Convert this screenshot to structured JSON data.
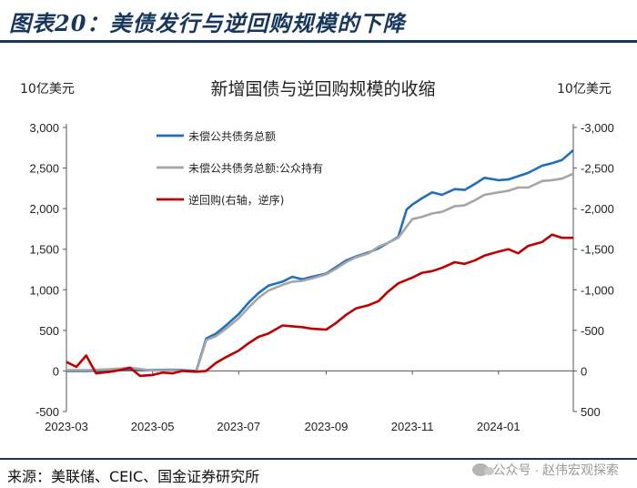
{
  "header": {
    "title": "图表20：美债发行与逆回购规模的下降"
  },
  "source": "来源：美联储、CEIC、国金证券研究所",
  "watermark": "公众号 · 赵伟宏观探索",
  "colors": {
    "series_blue": "#1f6fbf",
    "series_gray": "#a6a6a6",
    "series_red": "#c00000",
    "header_blue": "#17375e"
  },
  "chart_data": {
    "type": "line",
    "title": "新增国债与逆回购规模的收缩",
    "left_unit": "10亿美元",
    "right_unit": "10亿美元",
    "left_axis": {
      "min": -500,
      "max": 3000,
      "ticks": [
        -500,
        0,
        500,
        1000,
        1500,
        2000,
        2500,
        3000
      ],
      "tick_labels": [
        "-500",
        "0",
        "500",
        "1,000",
        "1,500",
        "2,000",
        "2,500",
        "3,000"
      ]
    },
    "right_axis": {
      "reversed": true,
      "min": 500,
      "max": -3000,
      "ticks": [
        500,
        0,
        -500,
        -1000,
        -1500,
        -2000,
        -2500,
        -3000
      ],
      "tick_labels": [
        "500",
        "0",
        "-500",
        "-1,000",
        "-1,500",
        "-2,000",
        "-2,500",
        "-3,000"
      ]
    },
    "x_range": [
      "2023-03-01",
      "2024-02-23"
    ],
    "x_tick_labels": [
      {
        "date": "2023-03-01",
        "label": "2023-03"
      },
      {
        "date": "2023-05-01",
        "label": "2023-05"
      },
      {
        "date": "2023-07-01",
        "label": "2023-07"
      },
      {
        "date": "2023-09-01",
        "label": "2023-09"
      },
      {
        "date": "2023-11-01",
        "label": "2023-11"
      },
      {
        "date": "2024-01-01",
        "label": "2024-01"
      }
    ],
    "legend_position": "top-left",
    "series": [
      {
        "name": "未偿公共债务总额",
        "axis": "left",
        "color": "#1f6fbf",
        "points": [
          [
            "2023-03-01",
            0
          ],
          [
            "2023-03-15",
            0
          ],
          [
            "2023-04-01",
            5
          ],
          [
            "2023-04-15",
            20
          ],
          [
            "2023-05-01",
            10
          ],
          [
            "2023-05-15",
            15
          ],
          [
            "2023-06-01",
            0
          ],
          [
            "2023-06-08",
            400
          ],
          [
            "2023-06-15",
            460
          ],
          [
            "2023-06-22",
            560
          ],
          [
            "2023-07-01",
            700
          ],
          [
            "2023-07-08",
            840
          ],
          [
            "2023-07-15",
            960
          ],
          [
            "2023-07-22",
            1050
          ],
          [
            "2023-08-01",
            1100
          ],
          [
            "2023-08-08",
            1160
          ],
          [
            "2023-08-15",
            1130
          ],
          [
            "2023-08-22",
            1160
          ],
          [
            "2023-09-01",
            1200
          ],
          [
            "2023-09-08",
            1280
          ],
          [
            "2023-09-15",
            1360
          ],
          [
            "2023-09-22",
            1410
          ],
          [
            "2023-10-01",
            1460
          ],
          [
            "2023-10-08",
            1510
          ],
          [
            "2023-10-15",
            1580
          ],
          [
            "2023-10-22",
            1650
          ],
          [
            "2023-10-28",
            1990
          ],
          [
            "2023-11-01",
            2050
          ],
          [
            "2023-11-08",
            2130
          ],
          [
            "2023-11-15",
            2200
          ],
          [
            "2023-11-22",
            2170
          ],
          [
            "2023-12-01",
            2240
          ],
          [
            "2023-12-08",
            2230
          ],
          [
            "2023-12-15",
            2300
          ],
          [
            "2023-12-22",
            2380
          ],
          [
            "2024-01-01",
            2350
          ],
          [
            "2024-01-08",
            2360
          ],
          [
            "2024-01-15",
            2400
          ],
          [
            "2024-01-22",
            2440
          ],
          [
            "2024-02-01",
            2530
          ],
          [
            "2024-02-08",
            2560
          ],
          [
            "2024-02-15",
            2600
          ],
          [
            "2024-02-23",
            2720
          ]
        ]
      },
      {
        "name": "未偿公共债务总额:公众持有",
        "axis": "left",
        "color": "#a6a6a6",
        "points": [
          [
            "2023-03-01",
            10
          ],
          [
            "2023-03-15",
            10
          ],
          [
            "2023-04-01",
            20
          ],
          [
            "2023-04-15",
            40
          ],
          [
            "2023-05-01",
            5
          ],
          [
            "2023-05-15",
            10
          ],
          [
            "2023-06-01",
            -10
          ],
          [
            "2023-06-08",
            380
          ],
          [
            "2023-06-15",
            430
          ],
          [
            "2023-06-22",
            520
          ],
          [
            "2023-07-01",
            650
          ],
          [
            "2023-07-08",
            780
          ],
          [
            "2023-07-15",
            900
          ],
          [
            "2023-07-22",
            990
          ],
          [
            "2023-08-01",
            1060
          ],
          [
            "2023-08-08",
            1100
          ],
          [
            "2023-08-15",
            1110
          ],
          [
            "2023-08-22",
            1140
          ],
          [
            "2023-09-01",
            1190
          ],
          [
            "2023-09-08",
            1260
          ],
          [
            "2023-09-15",
            1340
          ],
          [
            "2023-09-22",
            1400
          ],
          [
            "2023-10-01",
            1450
          ],
          [
            "2023-10-08",
            1530
          ],
          [
            "2023-10-15",
            1580
          ],
          [
            "2023-10-22",
            1640
          ],
          [
            "2023-11-01",
            1870
          ],
          [
            "2023-11-08",
            1900
          ],
          [
            "2023-11-15",
            1940
          ],
          [
            "2023-11-22",
            1960
          ],
          [
            "2023-12-01",
            2030
          ],
          [
            "2023-12-08",
            2040
          ],
          [
            "2023-12-15",
            2100
          ],
          [
            "2023-12-22",
            2170
          ],
          [
            "2024-01-01",
            2200
          ],
          [
            "2024-01-08",
            2220
          ],
          [
            "2024-01-15",
            2260
          ],
          [
            "2024-01-22",
            2260
          ],
          [
            "2024-02-01",
            2340
          ],
          [
            "2024-02-08",
            2350
          ],
          [
            "2024-02-15",
            2370
          ],
          [
            "2024-02-23",
            2430
          ]
        ]
      },
      {
        "name": "逆回购(右轴，逆序)",
        "axis": "right",
        "color": "#c00000",
        "points": [
          [
            "2023-03-01",
            -110
          ],
          [
            "2023-03-08",
            -50
          ],
          [
            "2023-03-15",
            -190
          ],
          [
            "2023-03-22",
            30
          ],
          [
            "2023-04-01",
            10
          ],
          [
            "2023-04-08",
            -10
          ],
          [
            "2023-04-15",
            -40
          ],
          [
            "2023-04-22",
            60
          ],
          [
            "2023-05-01",
            50
          ],
          [
            "2023-05-08",
            20
          ],
          [
            "2023-05-15",
            30
          ],
          [
            "2023-05-22",
            0
          ],
          [
            "2023-06-01",
            10
          ],
          [
            "2023-06-08",
            0
          ],
          [
            "2023-06-15",
            -100
          ],
          [
            "2023-06-22",
            -170
          ],
          [
            "2023-07-01",
            -250
          ],
          [
            "2023-07-08",
            -340
          ],
          [
            "2023-07-15",
            -420
          ],
          [
            "2023-07-22",
            -460
          ],
          [
            "2023-08-01",
            -560
          ],
          [
            "2023-08-08",
            -550
          ],
          [
            "2023-08-15",
            -540
          ],
          [
            "2023-08-22",
            -520
          ],
          [
            "2023-09-01",
            -510
          ],
          [
            "2023-09-08",
            -590
          ],
          [
            "2023-09-15",
            -690
          ],
          [
            "2023-09-22",
            -770
          ],
          [
            "2023-10-01",
            -810
          ],
          [
            "2023-10-08",
            -860
          ],
          [
            "2023-10-15",
            -980
          ],
          [
            "2023-10-22",
            -1080
          ],
          [
            "2023-11-01",
            -1150
          ],
          [
            "2023-11-08",
            -1210
          ],
          [
            "2023-11-15",
            -1230
          ],
          [
            "2023-11-22",
            -1270
          ],
          [
            "2023-12-01",
            -1340
          ],
          [
            "2023-12-08",
            -1320
          ],
          [
            "2023-12-15",
            -1360
          ],
          [
            "2023-12-22",
            -1420
          ],
          [
            "2024-01-01",
            -1470
          ],
          [
            "2024-01-08",
            -1500
          ],
          [
            "2024-01-15",
            -1450
          ],
          [
            "2024-01-22",
            -1540
          ],
          [
            "2024-02-01",
            -1590
          ],
          [
            "2024-02-08",
            -1680
          ],
          [
            "2024-02-15",
            -1640
          ],
          [
            "2024-02-23",
            -1640
          ]
        ]
      }
    ]
  }
}
